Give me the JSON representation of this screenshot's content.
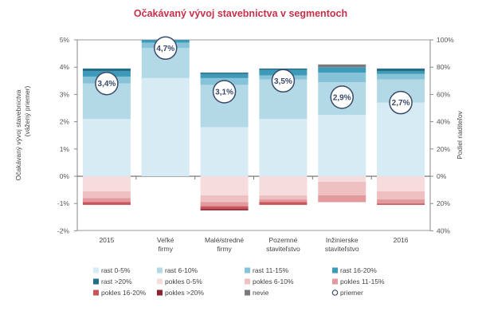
{
  "chart_data": {
    "type": "bar",
    "stacked": true,
    "title": "Očakávaný vývoj stavebnictva v segmentoch",
    "ylabel_left": [
      "Očakávaný vývoj stavebnictva",
      "(vážený priemer)"
    ],
    "ylabel_right": "Podiel riaditeľov",
    "y_left": {
      "ylim": [
        -2,
        5
      ],
      "ticks": [
        "-2%",
        "-1%",
        "0%",
        "1%",
        "2%",
        "3%",
        "4%",
        "5%"
      ]
    },
    "y_right": {
      "ylim": [
        -40,
        100
      ],
      "ticks": [
        "40%",
        "20%",
        "0%",
        "20%",
        "40%",
        "60%",
        "80%",
        "100%"
      ]
    },
    "categories": [
      [
        "2015"
      ],
      [
        "Veľké",
        "firmy"
      ],
      [
        "Malé/stredné",
        "firmy"
      ],
      [
        "Pozemné",
        "staviteľstvo"
      ],
      [
        "Inžinierske",
        "staviteľstvo"
      ],
      [
        "2016"
      ]
    ],
    "positive_series": [
      {
        "name": "rast 0-5%",
        "color": "#d6ebf3",
        "values": [
          42,
          72,
          36,
          42,
          45,
          54
        ]
      },
      {
        "name": "rast 6-10%",
        "color": "#b3d9e6",
        "values": [
          26,
          22,
          31,
          29,
          24,
          17
        ]
      },
      {
        "name": "rast 11-15%",
        "color": "#86c3d8",
        "values": [
          5,
          4,
          5,
          3,
          7,
          4
        ]
      },
      {
        "name": "rast 16-20%",
        "color": "#3d9ab8",
        "values": [
          4,
          2,
          3,
          4,
          4,
          2
        ]
      },
      {
        "name": "rast >20%",
        "color": "#236f87",
        "values": [
          2,
          0,
          1,
          1,
          0,
          2
        ]
      },
      {
        "name": "nevie",
        "color": "#7a7a7a",
        "values": [
          0,
          0,
          0,
          0,
          2,
          0
        ]
      }
    ],
    "negative_series": [
      {
        "name": "pokles 0-5%",
        "color": "#f6dcdc",
        "values": [
          11,
          0,
          14,
          14,
          4,
          11
        ]
      },
      {
        "name": "pokles 6-10%",
        "color": "#efc0c2",
        "values": [
          5,
          0,
          5,
          3,
          10,
          6
        ]
      },
      {
        "name": "pokles 11-15%",
        "color": "#e29a9e",
        "values": [
          3,
          0,
          3,
          2,
          5,
          3
        ]
      },
      {
        "name": "pokles 16-20%",
        "color": "#c9545c",
        "values": [
          2,
          0,
          2,
          2,
          0,
          1
        ]
      },
      {
        "name": "pokles >20%",
        "color": "#8b2330",
        "values": [
          0,
          0,
          1,
          0,
          0,
          0
        ]
      }
    ],
    "averages": {
      "name": "priemer",
      "values": [
        3.4,
        4.7,
        3.1,
        3.5,
        2.9,
        2.7
      ],
      "labels": [
        "3,4%",
        "4,7%",
        "3,1%",
        "3,5%",
        "2,9%",
        "2,7%"
      ]
    },
    "legend": [
      {
        "label": "rast 0-5%",
        "color": "#d6ebf3",
        "shape": "square"
      },
      {
        "label": "rast 6-10%",
        "color": "#b3d9e6",
        "shape": "square"
      },
      {
        "label": "rast 11-15%",
        "color": "#86c3d8",
        "shape": "square"
      },
      {
        "label": "rast 16-20%",
        "color": "#3d9ab8",
        "shape": "square"
      },
      {
        "label": "rast >20%",
        "color": "#236f87",
        "shape": "square"
      },
      {
        "label": "pokles 0-5%",
        "color": "#f6dcdc",
        "shape": "square"
      },
      {
        "label": "pokles 6-10%",
        "color": "#efc0c2",
        "shape": "square"
      },
      {
        "label": "pokles 11-15%",
        "color": "#e29a9e",
        "shape": "square"
      },
      {
        "label": "pokles 16-20%",
        "color": "#c9545c",
        "shape": "square"
      },
      {
        "label": "pokles >20%",
        "color": "#8b2330",
        "shape": "square"
      },
      {
        "label": "nevie",
        "color": "#7a7a7a",
        "shape": "square"
      },
      {
        "label": "priemer",
        "color": "#3a4a6a",
        "shape": "circle"
      }
    ],
    "legend_position": "bottom",
    "grid": false
  }
}
